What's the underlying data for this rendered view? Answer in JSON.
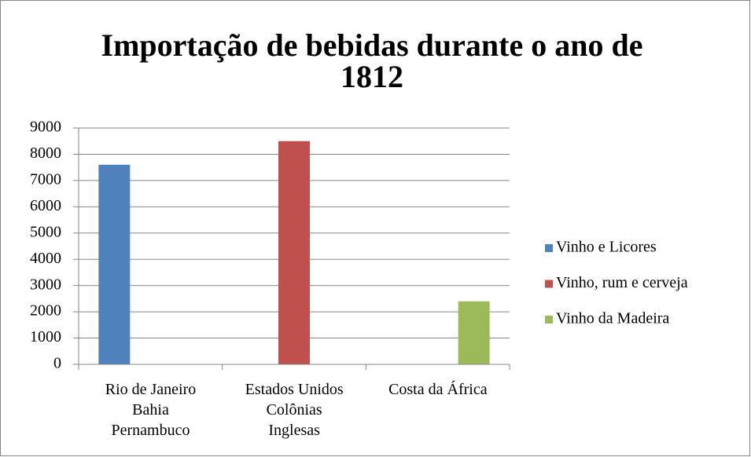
{
  "chart_data": {
    "type": "bar",
    "title": "Importação de bebidas durante o ano de 1812",
    "categories": [
      "Rio de Janeiro\nBahia\nPernambuco",
      "Estados Unidos\nColônias\nInglesas",
      "Costa da África"
    ],
    "series": [
      {
        "name": "Vinho e Licores",
        "color": "#4f81bd",
        "values": [
          7600,
          null,
          null
        ]
      },
      {
        "name": "Vinho, rum e cerveja",
        "color": "#c0504d",
        "values": [
          null,
          8500,
          null
        ]
      },
      {
        "name": "Vinho da Madeira",
        "color": "#9bbb59",
        "values": [
          null,
          null,
          2400
        ]
      }
    ],
    "ylim": [
      0,
      9000
    ],
    "yticks": [
      0,
      1000,
      2000,
      3000,
      4000,
      5000,
      6000,
      7000,
      8000,
      9000
    ],
    "grid": true,
    "legend": "right"
  }
}
